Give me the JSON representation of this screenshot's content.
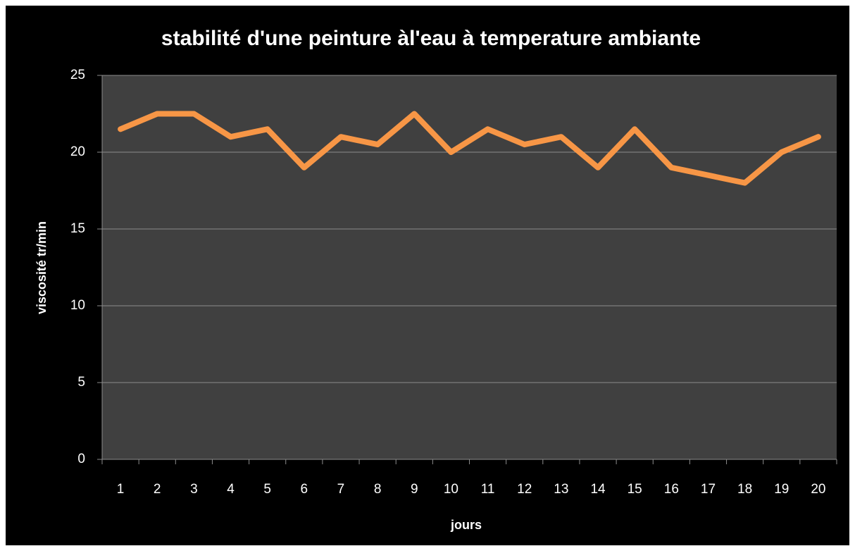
{
  "chart_data": {
    "type": "line",
    "title": "stabilité d'une peinture àl'eau à temperature ambiante",
    "x_label": "jours",
    "y_label": "viscosité tr/min",
    "categories": [
      "1",
      "2",
      "3",
      "4",
      "5",
      "6",
      "7",
      "8",
      "9",
      "10",
      "11",
      "12",
      "13",
      "14",
      "15",
      "16",
      "17",
      "18",
      "19",
      "20"
    ],
    "series": [
      {
        "name": "viscosité",
        "color": "#f79646",
        "values": [
          21.5,
          22.5,
          22.5,
          21,
          21.5,
          19,
          21,
          20.5,
          22.5,
          20,
          21.5,
          20.5,
          21,
          19,
          21.5,
          19,
          18.5,
          18,
          20,
          21
        ]
      }
    ],
    "ylim": [
      0,
      25
    ],
    "yticks": [
      0,
      5,
      10,
      15,
      20,
      25
    ],
    "grid": true,
    "legend": false
  }
}
